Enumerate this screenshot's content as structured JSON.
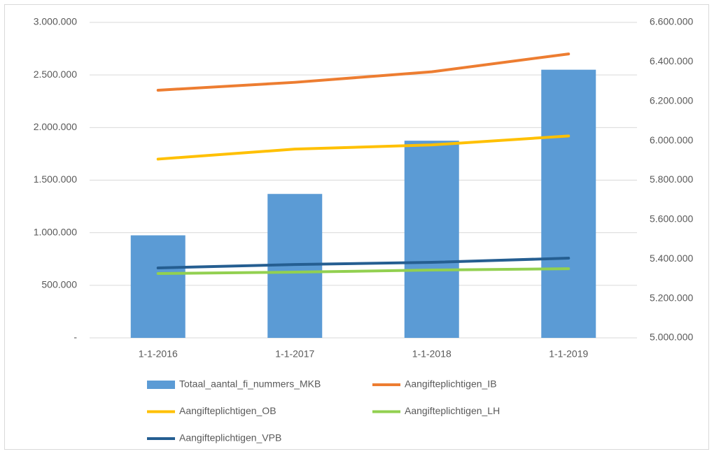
{
  "chart_data": {
    "type": "bar",
    "categories": [
      "1-1-2016",
      "1-1-2017",
      "1-1-2018",
      "1-1-2019"
    ],
    "series": [
      {
        "name": "Totaal_aantal_fi_nummers_MKB",
        "type": "bar",
        "axis": "y2",
        "color": "#5b9bd5",
        "values": [
          5520000,
          5730000,
          6000000,
          6360000
        ]
      },
      {
        "name": "Aangifteplichtigen_IB",
        "type": "line",
        "color": "#ed7d31",
        "values": [
          2355000,
          2430000,
          2530000,
          2700000
        ]
      },
      {
        "name": "Aangifteplichtigen_OB",
        "type": "line",
        "color": "#ffc000",
        "values": [
          1700000,
          1795000,
          1835000,
          1920000
        ]
      },
      {
        "name": "Aangifteplichtigen_LH",
        "type": "line",
        "color": "#92d050",
        "values": [
          612000,
          625000,
          645000,
          658000
        ]
      },
      {
        "name": "Aangifteplichtigen_VPB",
        "type": "line",
        "color": "#255e91",
        "values": [
          665000,
          698000,
          718000,
          758000
        ]
      }
    ],
    "ylim": [
      0,
      3000000
    ],
    "yticks": [
      {
        "value": 0,
        "label": "-"
      },
      {
        "value": 500000,
        "label": "500.000"
      },
      {
        "value": 1000000,
        "label": "1.000.000"
      },
      {
        "value": 1500000,
        "label": "1.500.000"
      },
      {
        "value": 2000000,
        "label": "2.000.000"
      },
      {
        "value": 2500000,
        "label": "2.500.000"
      },
      {
        "value": 3000000,
        "label": "3.000.000"
      }
    ],
    "y2lim": [
      5000000,
      6600000
    ],
    "y2ticks": [
      {
        "value": 5000000,
        "label": "5.000.000"
      },
      {
        "value": 5200000,
        "label": "5.200.000"
      },
      {
        "value": 5400000,
        "label": "5.400.000"
      },
      {
        "value": 5600000,
        "label": "5.600.000"
      },
      {
        "value": 5800000,
        "label": "5.800.000"
      },
      {
        "value": 6000000,
        "label": "6.000.000"
      },
      {
        "value": 6200000,
        "label": "6.200.000"
      },
      {
        "value": 6400000,
        "label": "6.400.000"
      },
      {
        "value": 6600000,
        "label": "6.600.000"
      }
    ],
    "grid": true,
    "legend": "bottom"
  }
}
